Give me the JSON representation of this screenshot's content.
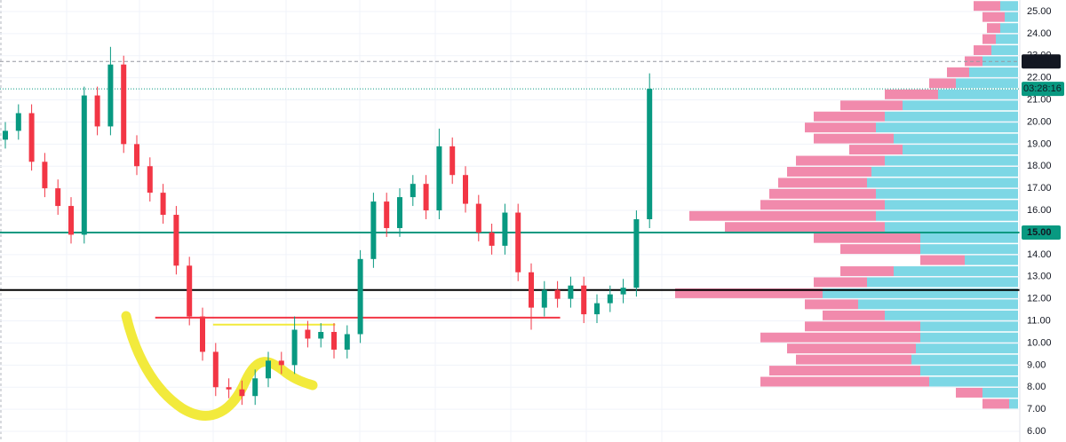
{
  "chart_data": {
    "type": "candlestick",
    "up_color": "#089981",
    "down_color": "#f23645",
    "ylim": [
      5.52,
      25.52
    ],
    "yticks": [
      {
        "value": 6,
        "label": "6.00"
      },
      {
        "value": 7,
        "label": "7.00"
      },
      {
        "value": 8,
        "label": "8.00"
      },
      {
        "value": 9,
        "label": "9.00"
      },
      {
        "value": 10,
        "label": "10.00"
      },
      {
        "value": 11,
        "label": "11.00"
      },
      {
        "value": 12,
        "label": "12.00"
      },
      {
        "value": 13,
        "label": "13.00"
      },
      {
        "value": 14,
        "label": "14.00"
      },
      {
        "value": 15,
        "label": "15.00"
      },
      {
        "value": 16,
        "label": "16.00"
      },
      {
        "value": 17,
        "label": "17.00"
      },
      {
        "value": 18,
        "label": "18.00"
      },
      {
        "value": 19,
        "label": "19.00"
      },
      {
        "value": 20,
        "label": "20.00"
      },
      {
        "value": 21,
        "label": "21.00"
      },
      {
        "value": 22,
        "label": "22.00"
      },
      {
        "value": 23,
        "label": "23.00"
      },
      {
        "value": 24,
        "label": "24.00"
      },
      {
        "value": 25,
        "label": "25.00"
      }
    ],
    "grid": true,
    "open": [
      19.2,
      19.6,
      20.4,
      18.2,
      17.0,
      16.2,
      14.9,
      21.2,
      19.8,
      22.6,
      19.0,
      18.0,
      16.8,
      15.8,
      13.5,
      11.2,
      9.6,
      8.0,
      7.9,
      7.6,
      8.4,
      9.2,
      9.0,
      10.6,
      10.2,
      10.5,
      9.7,
      10.4,
      13.8,
      16.4,
      15.2,
      16.6,
      17.2,
      16.0,
      18.9,
      17.6,
      16.3,
      15.0,
      14.4,
      15.9,
      13.2,
      11.6,
      12.4,
      12.0,
      12.6,
      11.3,
      11.8,
      12.2,
      12.5,
      15.6
    ],
    "high": [
      20.0,
      20.8,
      20.8,
      18.6,
      17.4,
      16.6,
      21.6,
      21.6,
      23.4,
      23.0,
      19.4,
      18.4,
      17.2,
      16.2,
      13.9,
      11.6,
      10.0,
      8.4,
      8.3,
      8.8,
      9.6,
      9.6,
      11.2,
      11.0,
      10.9,
      10.9,
      10.8,
      14.2,
      16.8,
      16.8,
      17.0,
      17.6,
      17.6,
      19.7,
      19.3,
      18.0,
      16.7,
      15.4,
      16.3,
      16.3,
      13.6,
      12.8,
      12.8,
      13.0,
      13.0,
      12.2,
      12.6,
      12.9,
      16.0,
      22.2
    ],
    "low": [
      18.8,
      19.2,
      17.8,
      16.6,
      15.8,
      14.5,
      14.5,
      19.4,
      19.4,
      18.6,
      17.6,
      16.4,
      15.4,
      13.1,
      10.8,
      9.2,
      7.6,
      7.5,
      7.2,
      7.2,
      8.0,
      8.6,
      8.6,
      9.8,
      9.8,
      9.3,
      9.3,
      10.0,
      13.4,
      14.8,
      14.8,
      16.2,
      15.6,
      15.6,
      17.2,
      15.9,
      14.6,
      14.0,
      14.0,
      12.8,
      10.6,
      11.2,
      11.6,
      11.6,
      10.9,
      10.9,
      11.4,
      11.8,
      12.1,
      15.2
    ],
    "close": [
      19.6,
      20.4,
      18.2,
      17.0,
      16.2,
      14.9,
      21.2,
      19.8,
      22.6,
      19.0,
      18.0,
      16.8,
      15.8,
      13.5,
      11.2,
      9.6,
      8.0,
      7.9,
      7.6,
      8.4,
      9.2,
      9.0,
      10.6,
      10.2,
      10.5,
      9.7,
      10.4,
      13.8,
      16.4,
      15.2,
      16.6,
      17.2,
      16.0,
      18.9,
      17.6,
      16.3,
      15.0,
      14.4,
      15.9,
      13.2,
      11.6,
      12.4,
      12.0,
      12.6,
      11.3,
      11.8,
      12.2,
      12.5,
      15.6,
      21.5
    ],
    "profile": {
      "up_color": "#6fd3e2",
      "down_color": "#ef7da3",
      "xlim": [
        0,
        400
      ],
      "prices": [
        7.25,
        7.75,
        8.25,
        8.75,
        9.25,
        9.75,
        10.25,
        10.75,
        11.25,
        11.75,
        12.25,
        12.75,
        13.25,
        13.75,
        14.25,
        14.75,
        15.25,
        15.75,
        16.25,
        16.75,
        17.25,
        17.75,
        18.25,
        18.75,
        19.25,
        19.75,
        20.25,
        20.75,
        21.25,
        21.75,
        22.25,
        22.75,
        23.25,
        23.75,
        24.25,
        24.75,
        25.25
      ],
      "up": [
        10,
        40,
        100,
        110,
        120,
        115,
        110,
        110,
        150,
        180,
        220,
        170,
        140,
        60,
        110,
        110,
        150,
        160,
        150,
        160,
        170,
        165,
        150,
        130,
        140,
        160,
        150,
        130,
        90,
        70,
        55,
        40,
        30,
        25,
        20,
        15,
        20
      ],
      "down": [
        30,
        30,
        190,
        170,
        130,
        145,
        180,
        130,
        70,
        60,
        166,
        60,
        60,
        50,
        90,
        120,
        180,
        210,
        140,
        120,
        100,
        95,
        100,
        60,
        90,
        80,
        80,
        70,
        60,
        30,
        25,
        20,
        20,
        15,
        15,
        25,
        30
      ]
    },
    "levels": [
      {
        "price": 22.74,
        "color": "#9598a1",
        "style": "dashed",
        "tag_color": "#131722"
      },
      {
        "price": {
          "value": 15,
          "label": "15.00"
        },
        "color": "#089981",
        "style": "solid",
        "tag_color": "#089981"
      },
      {
        "price": 12.4,
        "color": "#000000",
        "style": "solid"
      }
    ],
    "segments": [
      {
        "price": 11.15,
        "from": 11.4,
        "to": 42.2,
        "color": "#f23645"
      },
      {
        "price": 10.83,
        "from": 15.8,
        "to": 25.1,
        "color": "#f2ea3c"
      }
    ],
    "countdown": "03:28:16"
  }
}
